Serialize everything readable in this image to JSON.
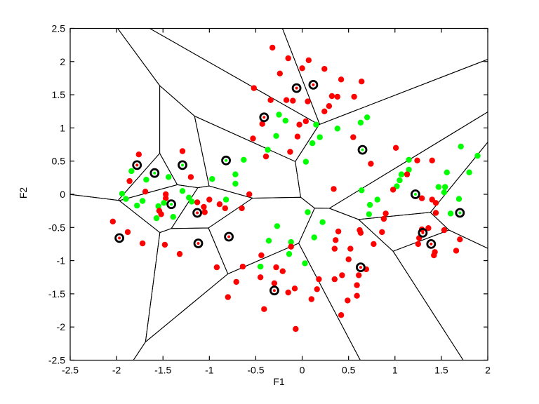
{
  "figure": {
    "background": "#ffffff"
  },
  "chart_data": {
    "type": "scatter",
    "subtype": "voronoi-scatter",
    "title": "",
    "xlabel": "F1",
    "ylabel": "F2",
    "xlim": [
      -2.5,
      2
    ],
    "ylim": [
      -2.5,
      2.5
    ],
    "grid": false,
    "legend": "none",
    "xticks": [
      -2.5,
      -2,
      -1.5,
      -1,
      -0.5,
      0,
      0.5,
      1,
      1.5,
      2
    ],
    "xtick_labels": [
      "-2.5",
      "-2",
      "-1.5",
      "-1",
      "-0.5",
      "0",
      "0.5",
      "1",
      "1.5",
      "2"
    ],
    "yticks": [
      -2.5,
      -2,
      -1.5,
      -1,
      -0.5,
      0,
      0.5,
      1,
      1.5,
      2,
      2.5
    ],
    "ytick_labels": [
      "-2.5",
      "-2",
      "-1.5",
      "-1",
      "-0.5",
      "0",
      "0.5",
      "1",
      "1.5",
      "2",
      "2.5"
    ],
    "colors": {
      "class_red": "#ff0000",
      "class_green": "#00ff00",
      "line": "#000000",
      "axis": "#000000"
    },
    "prototypes": [
      [
        -0.06,
        1.6,
        "r"
      ],
      [
        0.12,
        1.65,
        "r"
      ],
      [
        -0.41,
        1.16,
        "r"
      ],
      [
        0.65,
        0.67,
        "g"
      ],
      [
        -1.78,
        0.44,
        "r"
      ],
      [
        -1.29,
        0.44,
        "g"
      ],
      [
        -1.59,
        0.32,
        "g"
      ],
      [
        -0.82,
        0.51,
        "g"
      ],
      [
        -1.41,
        -0.15,
        "g"
      ],
      [
        -1.13,
        -0.28,
        "r"
      ],
      [
        1.22,
        0.0,
        "g"
      ],
      [
        1.7,
        -0.28,
        "g"
      ],
      [
        -0.79,
        -0.64,
        "r"
      ],
      [
        -1.97,
        -0.66,
        "r"
      ],
      [
        -1.12,
        -0.74,
        "r"
      ],
      [
        1.3,
        -0.58,
        "r"
      ],
      [
        1.39,
        -0.75,
        "r"
      ],
      [
        -0.3,
        -1.45,
        "r"
      ],
      [
        0.63,
        -1.1,
        "r"
      ]
    ],
    "points": [
      [
        -0.32,
        2.21,
        "r"
      ],
      [
        -0.15,
        2.05,
        "r"
      ],
      [
        0.07,
        2.02,
        "r"
      ],
      [
        0.0,
        1.9,
        "r"
      ],
      [
        0.24,
        1.89,
        "r"
      ],
      [
        -0.24,
        1.82,
        "r"
      ],
      [
        0.42,
        1.73,
        "r"
      ],
      [
        0.64,
        1.7,
        "r"
      ],
      [
        -0.52,
        1.6,
        "r"
      ],
      [
        0.56,
        1.47,
        "r"
      ],
      [
        0.32,
        1.48,
        "r"
      ],
      [
        0.38,
        1.47,
        "r"
      ],
      [
        -0.34,
        1.42,
        "r"
      ],
      [
        -0.17,
        1.42,
        "r"
      ],
      [
        -0.1,
        1.41,
        "r"
      ],
      [
        0.06,
        1.4,
        "r"
      ],
      [
        0.29,
        1.33,
        "r"
      ],
      [
        0.24,
        1.25,
        "r"
      ],
      [
        -0.25,
        1.2,
        "g"
      ],
      [
        0.7,
        1.16,
        "g"
      ],
      [
        -0.18,
        1.11,
        "g"
      ],
      [
        0.63,
        1.08,
        "g"
      ],
      [
        -0.43,
        1.06,
        "r"
      ],
      [
        -0.03,
        1.05,
        "r"
      ],
      [
        0.04,
        1.1,
        "r"
      ],
      [
        0.15,
        1.05,
        "g"
      ],
      [
        0.38,
        0.99,
        "g"
      ],
      [
        -0.28,
        0.88,
        "g"
      ],
      [
        -0.05,
        0.87,
        "r"
      ],
      [
        0.19,
        0.86,
        "g"
      ],
      [
        -0.53,
        0.84,
        "r"
      ],
      [
        0.55,
        0.86,
        "r"
      ],
      [
        0.11,
        0.77,
        "g"
      ],
      [
        -0.37,
        0.67,
        "g"
      ],
      [
        -0.13,
        0.64,
        "r"
      ],
      [
        -0.39,
        0.57,
        "r"
      ],
      [
        -0.63,
        0.52,
        "g"
      ],
      [
        0.04,
        0.49,
        "g"
      ],
      [
        -0.72,
        0.3,
        "g"
      ],
      [
        -0.97,
        0.23,
        "g"
      ],
      [
        -0.72,
        0.16,
        "g"
      ],
      [
        -0.57,
        0.0,
        "r"
      ],
      [
        -0.82,
        -0.08,
        "g"
      ],
      [
        -1.0,
        -0.08,
        "r"
      ],
      [
        -0.89,
        -0.15,
        "r"
      ],
      [
        -0.83,
        -0.21,
        "r"
      ],
      [
        -0.65,
        -0.21,
        "r"
      ],
      [
        0.34,
        0.08,
        "r"
      ],
      [
        0.06,
        -0.27,
        "g"
      ],
      [
        0.22,
        -0.42,
        "g"
      ],
      [
        -0.27,
        -0.48,
        "g"
      ],
      [
        -0.36,
        -0.7,
        "g"
      ],
      [
        -0.12,
        -0.72,
        "g"
      ],
      [
        -0.12,
        -0.79,
        "r"
      ],
      [
        -0.14,
        -0.9,
        "g"
      ],
      [
        0.13,
        -0.65,
        "g"
      ],
      [
        0.39,
        -0.56,
        "r"
      ],
      [
        0.36,
        -0.69,
        "r"
      ],
      [
        0.35,
        -0.82,
        "r"
      ],
      [
        0.52,
        -0.82,
        "r"
      ],
      [
        -1.76,
        0.6,
        "r"
      ],
      [
        -1.29,
        0.65,
        "r"
      ],
      [
        -1.84,
        0.35,
        "g"
      ],
      [
        -1.86,
        0.2,
        "r"
      ],
      [
        -1.68,
        0.22,
        "g"
      ],
      [
        -1.44,
        0.26,
        "g"
      ],
      [
        -1.2,
        0.26,
        "r"
      ],
      [
        -1.69,
        0.04,
        "r"
      ],
      [
        -1.94,
        0.01,
        "g"
      ],
      [
        -1.9,
        -0.07,
        "g"
      ],
      [
        -1.47,
        0.0,
        "r"
      ],
      [
        -1.47,
        -0.06,
        "r"
      ],
      [
        -1.29,
        0.05,
        "g"
      ],
      [
        -1.22,
        -0.05,
        "g"
      ],
      [
        -1.72,
        -0.1,
        "g"
      ],
      [
        -1.78,
        -0.17,
        "g"
      ],
      [
        -1.55,
        -0.18,
        "g"
      ],
      [
        -1.49,
        -0.13,
        "g"
      ],
      [
        -1.54,
        -0.25,
        "r"
      ],
      [
        -1.52,
        -0.3,
        "r"
      ],
      [
        -1.57,
        -0.36,
        "g"
      ],
      [
        -1.39,
        -0.34,
        "g"
      ],
      [
        -1.19,
        -0.11,
        "g"
      ],
      [
        -1.13,
        -0.12,
        "r"
      ],
      [
        -1.06,
        -0.19,
        "r"
      ],
      [
        -1.05,
        -0.27,
        "r"
      ],
      [
        -2.04,
        -0.41,
        "r"
      ],
      [
        -1.88,
        -0.57,
        "r"
      ],
      [
        -1.72,
        -0.74,
        "r"
      ],
      [
        -1.48,
        -0.76,
        "r"
      ],
      [
        -1.32,
        -0.9,
        "r"
      ],
      [
        1.01,
        0.7,
        "r"
      ],
      [
        1.71,
        0.72,
        "g"
      ],
      [
        1.89,
        0.58,
        "g"
      ],
      [
        0.74,
        0.46,
        "r"
      ],
      [
        1.15,
        0.52,
        "g"
      ],
      [
        1.24,
        0.51,
        "r"
      ],
      [
        1.4,
        0.51,
        "r"
      ],
      [
        1.15,
        0.37,
        "g"
      ],
      [
        1.07,
        0.3,
        "g"
      ],
      [
        1.13,
        0.3,
        "r"
      ],
      [
        1.56,
        0.33,
        "g"
      ],
      [
        1.8,
        0.33,
        "g"
      ],
      [
        1.05,
        0.21,
        "g"
      ],
      [
        1.02,
        0.12,
        "g"
      ],
      [
        0.64,
        0.06,
        "g"
      ],
      [
        0.98,
        0.07,
        "r"
      ],
      [
        1.47,
        0.11,
        "g"
      ],
      [
        1.54,
        0.11,
        "g"
      ],
      [
        1.53,
        0.03,
        "g"
      ],
      [
        1.29,
        -0.06,
        "r"
      ],
      [
        1.69,
        -0.07,
        "g"
      ],
      [
        1.4,
        -0.08,
        "r"
      ],
      [
        1.44,
        -0.13,
        "r"
      ],
      [
        0.81,
        -0.08,
        "g"
      ],
      [
        0.73,
        -0.16,
        "g"
      ],
      [
        0.72,
        -0.3,
        "g"
      ],
      [
        0.9,
        -0.29,
        "r"
      ],
      [
        0.88,
        -0.37,
        "r"
      ],
      [
        1.44,
        -0.28,
        "r"
      ],
      [
        1.6,
        -0.29,
        "g"
      ],
      [
        0.62,
        -0.54,
        "r"
      ],
      [
        0.63,
        -0.58,
        "r"
      ],
      [
        0.86,
        -0.57,
        "r"
      ],
      [
        0.77,
        -0.75,
        "r"
      ],
      [
        1.29,
        -0.53,
        "r"
      ],
      [
        1.36,
        -0.51,
        "r"
      ],
      [
        1.26,
        -0.66,
        "r"
      ],
      [
        1.25,
        -0.75,
        "r"
      ],
      [
        1.53,
        -0.54,
        "r"
      ],
      [
        1.7,
        -0.68,
        "r"
      ],
      [
        1.66,
        -0.85,
        "r"
      ],
      [
        1.43,
        -0.87,
        "r"
      ],
      [
        1.42,
        -0.92,
        "r"
      ],
      [
        -0.92,
        -1.1,
        "r"
      ],
      [
        -0.44,
        -0.92,
        "r"
      ],
      [
        -0.64,
        -1.09,
        "r"
      ],
      [
        -0.45,
        -1.09,
        "g"
      ],
      [
        -0.28,
        -1.1,
        "r"
      ],
      [
        -0.21,
        -1.16,
        "r"
      ],
      [
        0.03,
        -1.04,
        "g"
      ],
      [
        -0.45,
        -1.25,
        "r"
      ],
      [
        -0.71,
        -1.32,
        "r"
      ],
      [
        -0.3,
        -1.34,
        "r"
      ],
      [
        -0.15,
        -1.48,
        "r"
      ],
      [
        -0.08,
        -1.42,
        "r"
      ],
      [
        -0.8,
        -1.55,
        "r"
      ],
      [
        0.1,
        -1.58,
        "r"
      ],
      [
        0.16,
        -1.43,
        "r"
      ],
      [
        0.18,
        -1.28,
        "r"
      ],
      [
        0.35,
        -1.28,
        "r"
      ],
      [
        0.43,
        -1.22,
        "r"
      ],
      [
        0.5,
        -0.98,
        "r"
      ],
      [
        -0.41,
        -1.73,
        "r"
      ],
      [
        0.42,
        -1.82,
        "r"
      ],
      [
        -0.07,
        -2.03,
        "r"
      ],
      [
        0.49,
        -1.6,
        "r"
      ],
      [
        0.69,
        -1.13,
        "r"
      ],
      [
        0.61,
        -1.22,
        "r"
      ],
      [
        0.59,
        -1.37,
        "r"
      ],
      [
        0.59,
        -1.53,
        "r"
      ]
    ]
  }
}
